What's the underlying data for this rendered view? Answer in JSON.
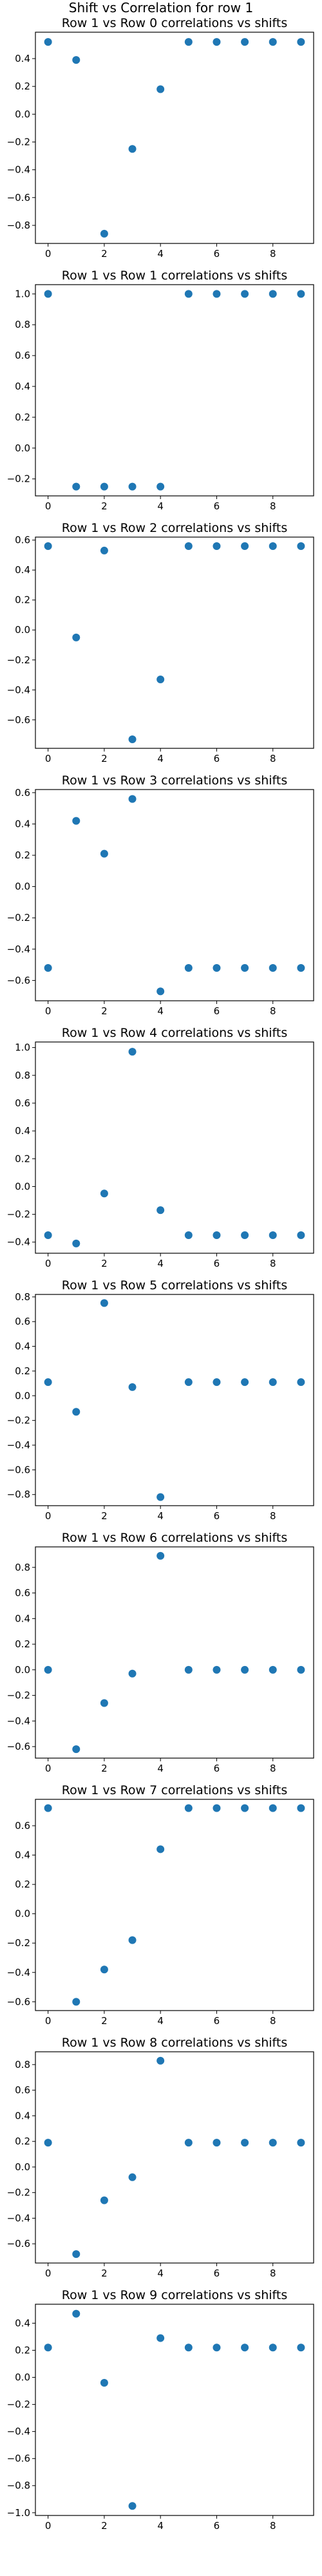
{
  "suptitle": "Shift vs Correlation for row 1",
  "chart_data": [
    {
      "type": "scatter",
      "title": "Row 1 vs Row 0 correlations vs shifts",
      "x": [
        0,
        1,
        2,
        3,
        4,
        5,
        6,
        7,
        8,
        9
      ],
      "y": [
        0.52,
        0.39,
        -0.86,
        -0.25,
        0.18,
        0.52,
        0.52,
        0.52,
        0.52,
        0.52
      ],
      "xlim": [
        -0.45,
        9.45
      ],
      "ylim": [
        -0.93,
        0.59
      ],
      "xticks": [
        0,
        2,
        4,
        6,
        8
      ],
      "yticks": [
        -0.8,
        -0.6,
        -0.4,
        -0.2,
        0.0,
        0.2,
        0.4
      ],
      "color": "#1f77b4",
      "grid": false
    },
    {
      "type": "scatter",
      "title": "Row 1 vs Row 1 correlations vs shifts",
      "x": [
        0,
        1,
        2,
        3,
        4,
        5,
        6,
        7,
        8,
        9
      ],
      "y": [
        1.0,
        -0.25,
        -0.25,
        -0.25,
        -0.25,
        1.0,
        1.0,
        1.0,
        1.0,
        1.0
      ],
      "xlim": [
        -0.45,
        9.45
      ],
      "ylim": [
        -0.31,
        1.06
      ],
      "xticks": [
        0,
        2,
        4,
        6,
        8
      ],
      "yticks": [
        -0.2,
        0.0,
        0.2,
        0.4,
        0.6,
        0.8,
        1.0
      ],
      "color": "#1f77b4",
      "grid": false
    },
    {
      "type": "scatter",
      "title": "Row 1 vs Row 2 correlations vs shifts",
      "x": [
        0,
        1,
        2,
        3,
        4,
        5,
        6,
        7,
        8,
        9
      ],
      "y": [
        0.56,
        -0.05,
        0.53,
        -0.73,
        -0.33,
        0.56,
        0.56,
        0.56,
        0.56,
        0.56
      ],
      "xlim": [
        -0.45,
        9.45
      ],
      "ylim": [
        -0.79,
        0.62
      ],
      "xticks": [
        0,
        2,
        4,
        6,
        8
      ],
      "yticks": [
        -0.6,
        -0.4,
        -0.2,
        0.0,
        0.2,
        0.4,
        0.6
      ],
      "color": "#1f77b4",
      "grid": false
    },
    {
      "type": "scatter",
      "title": "Row 1 vs Row 3 correlations vs shifts",
      "x": [
        0,
        1,
        2,
        3,
        4,
        5,
        6,
        7,
        8,
        9
      ],
      "y": [
        -0.52,
        0.42,
        0.21,
        0.56,
        -0.67,
        -0.52,
        -0.52,
        -0.52,
        -0.52,
        -0.52
      ],
      "xlim": [
        -0.45,
        9.45
      ],
      "ylim": [
        -0.73,
        0.62
      ],
      "xticks": [
        0,
        2,
        4,
        6,
        8
      ],
      "yticks": [
        -0.6,
        -0.4,
        -0.2,
        0.0,
        0.2,
        0.4,
        0.6
      ],
      "color": "#1f77b4",
      "grid": false
    },
    {
      "type": "scatter",
      "title": "Row 1 vs Row 4 correlations vs shifts",
      "x": [
        0,
        1,
        2,
        3,
        4,
        5,
        6,
        7,
        8,
        9
      ],
      "y": [
        -0.35,
        -0.41,
        -0.05,
        0.97,
        -0.17,
        -0.35,
        -0.35,
        -0.35,
        -0.35,
        -0.35
      ],
      "xlim": [
        -0.45,
        9.45
      ],
      "ylim": [
        -0.48,
        1.04
      ],
      "xticks": [
        0,
        2,
        4,
        6,
        8
      ],
      "yticks": [
        -0.4,
        -0.2,
        0.0,
        0.2,
        0.4,
        0.6,
        0.8,
        1.0
      ],
      "color": "#1f77b4",
      "grid": false
    },
    {
      "type": "scatter",
      "title": "Row 1 vs Row 5 correlations vs shifts",
      "x": [
        0,
        1,
        2,
        3,
        4,
        5,
        6,
        7,
        8,
        9
      ],
      "y": [
        0.11,
        -0.13,
        0.75,
        0.07,
        -0.82,
        0.11,
        0.11,
        0.11,
        0.11,
        0.11
      ],
      "xlim": [
        -0.45,
        9.45
      ],
      "ylim": [
        -0.89,
        0.82
      ],
      "xticks": [
        0,
        2,
        4,
        6,
        8
      ],
      "yticks": [
        -0.8,
        -0.6,
        -0.4,
        -0.2,
        0.0,
        0.2,
        0.4,
        0.6,
        0.8
      ],
      "color": "#1f77b4",
      "grid": false
    },
    {
      "type": "scatter",
      "title": "Row 1 vs Row 6 correlations vs shifts",
      "x": [
        0,
        1,
        2,
        3,
        4,
        5,
        6,
        7,
        8,
        9
      ],
      "y": [
        0.0,
        -0.62,
        -0.26,
        -0.03,
        0.89,
        0.0,
        0.0,
        0.0,
        0.0,
        0.0
      ],
      "xlim": [
        -0.45,
        9.45
      ],
      "ylim": [
        -0.69,
        0.96
      ],
      "xticks": [
        0,
        2,
        4,
        6,
        8
      ],
      "yticks": [
        -0.6,
        -0.4,
        -0.2,
        0.0,
        0.2,
        0.4,
        0.6,
        0.8
      ],
      "color": "#1f77b4",
      "grid": false
    },
    {
      "type": "scatter",
      "title": "Row 1 vs Row 7 correlations vs shifts",
      "x": [
        0,
        1,
        2,
        3,
        4,
        5,
        6,
        7,
        8,
        9
      ],
      "y": [
        0.72,
        -0.6,
        -0.38,
        -0.18,
        0.44,
        0.72,
        0.72,
        0.72,
        0.72,
        0.72
      ],
      "xlim": [
        -0.45,
        9.45
      ],
      "ylim": [
        -0.66,
        0.78
      ],
      "xticks": [
        0,
        2,
        4,
        6,
        8
      ],
      "yticks": [
        -0.6,
        -0.4,
        -0.2,
        0.0,
        0.2,
        0.4,
        0.6
      ],
      "color": "#1f77b4",
      "grid": false
    },
    {
      "type": "scatter",
      "title": "Row 1 vs Row 8 correlations vs shifts",
      "x": [
        0,
        1,
        2,
        3,
        4,
        5,
        6,
        7,
        8,
        9
      ],
      "y": [
        0.19,
        -0.68,
        -0.26,
        -0.08,
        0.83,
        0.19,
        0.19,
        0.19,
        0.19,
        0.19
      ],
      "xlim": [
        -0.45,
        9.45
      ],
      "ylim": [
        -0.75,
        0.9
      ],
      "xticks": [
        0,
        2,
        4,
        6,
        8
      ],
      "yticks": [
        -0.6,
        -0.4,
        -0.2,
        0.0,
        0.2,
        0.4,
        0.6,
        0.8
      ],
      "color": "#1f77b4",
      "grid": false
    },
    {
      "type": "scatter",
      "title": "Row 1 vs Row 9 correlations vs shifts",
      "x": [
        0,
        1,
        2,
        3,
        4,
        5,
        6,
        7,
        8,
        9
      ],
      "y": [
        0.22,
        0.47,
        -0.04,
        -0.95,
        0.29,
        0.22,
        0.22,
        0.22,
        0.22,
        0.22
      ],
      "xlim": [
        -0.45,
        9.45
      ],
      "ylim": [
        -1.02,
        0.54
      ],
      "xticks": [
        0,
        2,
        4,
        6,
        8
      ],
      "yticks": [
        -1.0,
        -0.8,
        -0.6,
        -0.4,
        -0.2,
        0.0,
        0.2,
        0.4
      ],
      "color": "#1f77b4",
      "grid": false
    }
  ]
}
